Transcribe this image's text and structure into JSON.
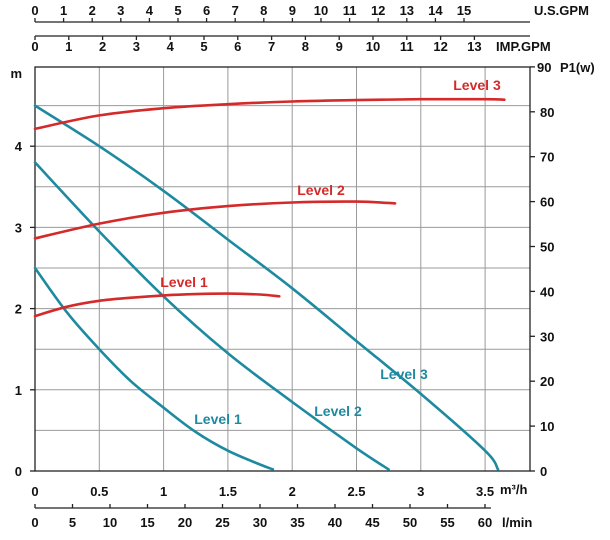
{
  "chart_data": {
    "type": "line",
    "colors": {
      "head": "#1e8aa0",
      "power": "#d42a2a"
    },
    "axes": {
      "left": {
        "label": "m",
        "ylim": [
          0,
          5.2
        ],
        "ticks": [
          "0",
          "1",
          "2",
          "3",
          "4"
        ]
      },
      "right": {
        "label": "P1(w)",
        "ylim": [
          0,
          90
        ],
        "ticks": [
          "0",
          "10",
          "20",
          "30",
          "40",
          "50",
          "60",
          "70",
          "80",
          "90"
        ]
      },
      "bottom_m3h": {
        "label": "m³/h",
        "xlim": [
          0,
          3.7
        ],
        "ticks": [
          "0",
          "0.5",
          "1",
          "1.5",
          "2",
          "2.5",
          "3",
          "3.5"
        ]
      },
      "bottom_lmin": {
        "label": "l/min",
        "xlim": [
          0,
          61.667
        ],
        "ticks": [
          "0",
          "5",
          "10",
          "15",
          "20",
          "25",
          "30",
          "35",
          "40",
          "45",
          "50",
          "55",
          "60"
        ]
      },
      "top_usgpm": {
        "label": "U.S.GPM",
        "ticks": [
          "0",
          "1",
          "2",
          "3",
          "4",
          "5",
          "6",
          "7",
          "8",
          "9",
          "10",
          "11",
          "12",
          "13",
          "14",
          "15"
        ]
      },
      "top_impgpm": {
        "label": "IMP.GPM",
        "ticks": [
          "0",
          "1",
          "2",
          "3",
          "4",
          "5",
          "6",
          "7",
          "8",
          "9",
          "10",
          "11",
          "12",
          "13"
        ]
      }
    },
    "head_series": [
      {
        "name": "Level 1",
        "x_m3h": [
          0,
          0.25,
          0.5,
          0.75,
          1.0,
          1.25,
          1.5,
          1.75,
          1.85
        ],
        "y_m": [
          2.5,
          1.95,
          1.5,
          1.1,
          0.78,
          0.48,
          0.25,
          0.08,
          0.02
        ]
      },
      {
        "name": "Level 2",
        "x_m3h": [
          0,
          0.5,
          1.0,
          1.5,
          2.0,
          2.5,
          2.75
        ],
        "y_m": [
          3.8,
          2.95,
          2.15,
          1.45,
          0.85,
          0.28,
          0.02
        ]
      },
      {
        "name": "Level 3",
        "x_m3h": [
          0,
          0.5,
          1.0,
          1.5,
          2.0,
          2.5,
          3.0,
          3.5,
          3.6
        ],
        "y_m": [
          4.5,
          4.0,
          3.45,
          2.85,
          2.25,
          1.6,
          0.95,
          0.25,
          0.02
        ]
      }
    ],
    "power_series": [
      {
        "name": "Level 1",
        "x_m3h": [
          0,
          0.25,
          0.5,
          0.75,
          1.0,
          1.25,
          1.5,
          1.75,
          1.9
        ],
        "y_w": [
          34.5,
          36.6,
          37.9,
          38.6,
          39.1,
          39.4,
          39.5,
          39.3,
          38.9
        ]
      },
      {
        "name": "Level 2",
        "x_m3h": [
          0,
          0.5,
          1.0,
          1.5,
          2.0,
          2.5,
          2.8
        ],
        "y_w": [
          51.8,
          55.1,
          57.5,
          59.0,
          59.8,
          60.0,
          59.6
        ]
      },
      {
        "name": "Level 3",
        "x_m3h": [
          0,
          0.5,
          1.0,
          1.5,
          2.0,
          2.5,
          3.0,
          3.5,
          3.65
        ],
        "y_w": [
          76.2,
          79.2,
          80.8,
          81.7,
          82.3,
          82.6,
          82.8,
          82.8,
          82.7
        ]
      }
    ]
  }
}
